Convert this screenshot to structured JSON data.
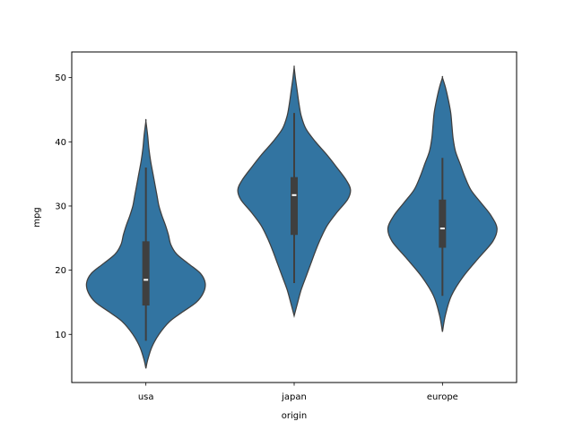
{
  "chart_data": {
    "type": "violin",
    "xlabel": "origin",
    "ylabel": "mpg",
    "ylim": [
      2.5,
      54
    ],
    "yticks": [
      10,
      20,
      30,
      40,
      50
    ],
    "categories": [
      "usa",
      "japan",
      "europe"
    ],
    "color": "#3274a1",
    "edge_color": "#3f3f3f",
    "grid": false,
    "violins": [
      {
        "category": "usa",
        "whisker_low": 9,
        "q1": 14.5,
        "median": 18.5,
        "q3": 24.5,
        "whisker_high": 36,
        "density": [
          [
            4.7,
            0.0
          ],
          [
            6,
            0.03
          ],
          [
            8,
            0.1
          ],
          [
            10,
            0.22
          ],
          [
            12,
            0.4
          ],
          [
            13.5,
            0.62
          ],
          [
            15,
            0.85
          ],
          [
            16.5,
            0.97
          ],
          [
            18,
            1.0
          ],
          [
            19.5,
            0.92
          ],
          [
            21,
            0.72
          ],
          [
            22.5,
            0.52
          ],
          [
            24,
            0.42
          ],
          [
            25.5,
            0.38
          ],
          [
            27,
            0.33
          ],
          [
            28.5,
            0.27
          ],
          [
            30,
            0.22
          ],
          [
            31.5,
            0.19
          ],
          [
            33,
            0.16
          ],
          [
            35,
            0.12
          ],
          [
            37,
            0.08
          ],
          [
            39,
            0.05
          ],
          [
            41,
            0.03
          ],
          [
            43.2,
            0.0
          ]
        ]
      },
      {
        "category": "japan",
        "whisker_low": 18,
        "q1": 25.5,
        "median": 31.7,
        "q3": 34.5,
        "whisker_high": 44.5,
        "density": [
          [
            12.9,
            0.0
          ],
          [
            15,
            0.06
          ],
          [
            17,
            0.12
          ],
          [
            19,
            0.2
          ],
          [
            21,
            0.28
          ],
          [
            23,
            0.36
          ],
          [
            25,
            0.45
          ],
          [
            27,
            0.56
          ],
          [
            29,
            0.72
          ],
          [
            31,
            0.9
          ],
          [
            32.5,
            0.95
          ],
          [
            34,
            0.88
          ],
          [
            36,
            0.72
          ],
          [
            38,
            0.55
          ],
          [
            40,
            0.36
          ],
          [
            42,
            0.2
          ],
          [
            44,
            0.12
          ],
          [
            46,
            0.08
          ],
          [
            48,
            0.05
          ],
          [
            50,
            0.02
          ],
          [
            51.6,
            0.0
          ]
        ]
      },
      {
        "category": "europe",
        "whisker_low": 16,
        "q1": 23.5,
        "median": 26.5,
        "q3": 31,
        "whisker_high": 37.5,
        "density": [
          [
            10.4,
            0.0
          ],
          [
            13,
            0.05
          ],
          [
            16,
            0.15
          ],
          [
            19,
            0.35
          ],
          [
            22,
            0.62
          ],
          [
            24.5,
            0.85
          ],
          [
            26.5,
            0.92
          ],
          [
            28.5,
            0.82
          ],
          [
            30.5,
            0.65
          ],
          [
            32.5,
            0.48
          ],
          [
            34.5,
            0.38
          ],
          [
            36.5,
            0.3
          ],
          [
            38.5,
            0.22
          ],
          [
            40.5,
            0.18
          ],
          [
            42.5,
            0.16
          ],
          [
            44.5,
            0.14
          ],
          [
            46.5,
            0.1
          ],
          [
            48.5,
            0.05
          ],
          [
            50,
            0.0
          ]
        ]
      }
    ]
  }
}
